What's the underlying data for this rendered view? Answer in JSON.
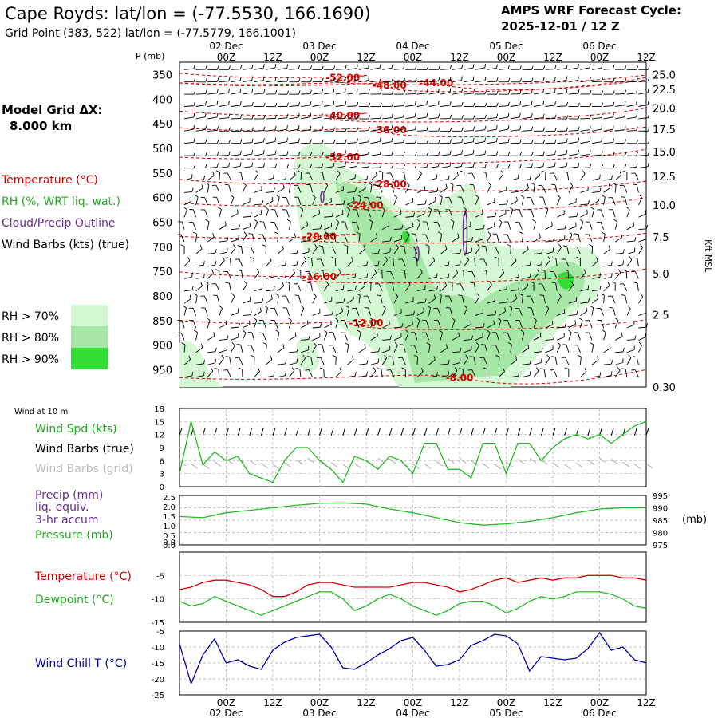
{
  "header": {
    "title": "Cape Royds:  lat/lon = (-77.5530, 166.1690)",
    "subtitle": "Grid Point (383, 522) lat/lon = (-77.5779, 166.1001)",
    "forecast_label": "AMPS WRF Forecast Cycle:",
    "forecast_cycle": "2025-12-01 / 12  Z"
  },
  "side_labels": {
    "model_grid": "Model Grid ΔX:",
    "model_grid_value": "8.000 km",
    "temperature": "Temperature (°C)",
    "rh": "RH (%, WRT liq. wat.)",
    "cloud": "Cloud/Precip Outline",
    "wind_barbs": "Wind Barbs (kts) (true)",
    "rh70": "RH > 70%",
    "rh80": "RH > 80%",
    "rh90": "RH > 90%",
    "wind10": "Wind at 10 m",
    "wind_spd": "Wind Spd (kts)",
    "wind_barbs_true": "Wind Barbs (true)",
    "wind_barbs_grid": "Wind Barbs (grid)",
    "precip1": "Precip (mm)",
    "precip2": "liq. equiv.",
    "precip3": "3-hr accum",
    "pressure": "Pressure (mb)",
    "temp": "Temperature (°C)",
    "dewpoint": "Dewpoint (°C)",
    "windchill": "Wind Chill T (°C)",
    "p_axis": "P (mb)",
    "kft_axis": "Kft MSL",
    "mb_unit": "(mb)"
  },
  "colors": {
    "temperature": "#dd0000",
    "rh": "#22bb22",
    "cloud": "#6a2c91",
    "windchill": "#0000aa",
    "grid": "#999999",
    "rh70": "#d4f7d4",
    "rh80": "#a6e6a6",
    "rh90": "#33dd33"
  },
  "chart_data": {
    "type": "line",
    "time_axis": {
      "hours": [
        0,
        12,
        24,
        36,
        48,
        60,
        72,
        84,
        96,
        108,
        120
      ],
      "tick_labels": [
        "00Z",
        "12Z",
        "00Z",
        "12Z",
        "00Z",
        "12Z",
        "00Z",
        "12Z",
        "00Z",
        "12Z"
      ],
      "tick_hours": [
        12,
        24,
        36,
        48,
        60,
        72,
        84,
        96,
        108,
        120
      ],
      "day_labels": [
        "02 Dec",
        "03 Dec",
        "04 Dec",
        "05 Dec",
        "06 Dec"
      ],
      "day_hours": [
        12,
        36,
        60,
        84,
        108
      ]
    },
    "cross_section": {
      "pressure_ticks": [
        350,
        400,
        450,
        500,
        550,
        600,
        650,
        700,
        750,
        800,
        850,
        900,
        950
      ],
      "height_kft_ticks": [
        "25.0",
        "22.5",
        "20.0",
        "17.5",
        "15.0",
        "12.5",
        "10.0",
        "7.5",
        "5.0",
        "2.5",
        "0.30"
      ],
      "height_kft_pressure": [
        350,
        380,
        418,
        461,
        507,
        557,
        615,
        680,
        755,
        838,
        985
      ],
      "temperature_contours": [
        {
          "label": "-52.00",
          "hour": 42,
          "p": 357
        },
        {
          "label": "-48.00",
          "hour": 54,
          "p": 372
        },
        {
          "label": "-44.00",
          "hour": 66,
          "p": 367
        },
        {
          "label": "-40.00",
          "hour": 42,
          "p": 434
        },
        {
          "label": "-36.00",
          "hour": 54,
          "p": 463
        },
        {
          "label": "-32.00",
          "hour": 42,
          "p": 518
        },
        {
          "label": "-28.00",
          "hour": 54,
          "p": 573
        },
        {
          "label": "-24.00",
          "hour": 48,
          "p": 616
        },
        {
          "label": "-20.00",
          "hour": 36,
          "p": 679
        },
        {
          "label": "-16.00",
          "hour": 36,
          "p": 761
        },
        {
          "label": "-12.00",
          "hour": 48,
          "p": 855
        },
        {
          "label": "-8.00",
          "hour": 72,
          "p": 966
        }
      ]
    },
    "rh_legend_levels": [
      70,
      80,
      90
    ],
    "wind_speed": {
      "ylim": [
        0,
        18
      ],
      "yticks": [
        0,
        3,
        6,
        9,
        12,
        15,
        18
      ],
      "hours": [
        0,
        3,
        6,
        9,
        12,
        15,
        18,
        21,
        24,
        27,
        30,
        33,
        36,
        39,
        42,
        45,
        48,
        51,
        54,
        57,
        60,
        63,
        66,
        69,
        72,
        75,
        78,
        81,
        84,
        87,
        90,
        93,
        96,
        99,
        102,
        105,
        108,
        111,
        114,
        117,
        120
      ],
      "values": [
        3,
        15,
        5,
        8,
        6,
        7,
        3,
        2,
        1,
        6,
        9,
        9,
        6,
        4,
        1,
        7,
        6,
        4,
        7,
        6,
        3,
        10,
        10,
        4,
        4,
        2,
        10,
        10,
        3,
        10,
        10,
        6,
        9,
        11,
        12,
        11,
        12,
        10,
        12,
        14,
        15
      ]
    },
    "precip_pressure": {
      "precip_ylim": [
        0,
        2.5
      ],
      "precip_yticks": [
        "0.0",
        "0.0",
        "0.5",
        "1.0",
        "1.5",
        "2.0",
        "2.5"
      ],
      "pressure_ylim": [
        975,
        995
      ],
      "pressure_yticks": [
        975,
        980,
        985,
        990,
        995
      ],
      "hours": [
        0,
        6,
        12,
        18,
        24,
        30,
        36,
        42,
        48,
        54,
        60,
        66,
        72,
        78,
        84,
        90,
        96,
        102,
        108,
        114,
        120
      ],
      "pressure": [
        986.5,
        986,
        988,
        989,
        990,
        991,
        991.8,
        992,
        991.5,
        989.5,
        988,
        986,
        984,
        983,
        983.5,
        984.5,
        986,
        988,
        989.5,
        990,
        990
      ],
      "precip": [
        0,
        0,
        0,
        0,
        0,
        0,
        0,
        0,
        0,
        0,
        0,
        0,
        0,
        0,
        0,
        0,
        0,
        0,
        0,
        0,
        0
      ]
    },
    "temperature_dewpoint": {
      "ylim": [
        -15,
        0
      ],
      "yticks": [
        -5,
        -10,
        -15
      ],
      "hours": [
        0,
        3,
        6,
        9,
        12,
        15,
        18,
        21,
        24,
        27,
        30,
        33,
        36,
        39,
        42,
        45,
        48,
        51,
        54,
        57,
        60,
        63,
        66,
        69,
        72,
        75,
        78,
        81,
        84,
        87,
        90,
        93,
        96,
        99,
        102,
        105,
        108,
        111,
        114,
        117,
        120
      ],
      "temperature": [
        -8,
        -7.5,
        -6.5,
        -6,
        -6,
        -6.5,
        -7,
        -8,
        -9.5,
        -9.5,
        -8.5,
        -7,
        -6.5,
        -6.5,
        -7,
        -7.5,
        -7.5,
        -7.5,
        -7.5,
        -7,
        -6.5,
        -6.5,
        -7,
        -7.5,
        -8.5,
        -8,
        -7,
        -6,
        -5.5,
        -6.5,
        -6,
        -5.5,
        -6,
        -5.5,
        -5.5,
        -5,
        -5,
        -5,
        -5.5,
        -5.5,
        -6
      ],
      "dewpoint": [
        -10.5,
        -11.5,
        -11,
        -9.5,
        -10.5,
        -11.5,
        -12.5,
        -13.5,
        -12.5,
        -11.5,
        -10.5,
        -9.5,
        -8.5,
        -8.5,
        -10,
        -12.5,
        -11.5,
        -10,
        -9,
        -10,
        -11.5,
        -12.5,
        -13.5,
        -12.5,
        -11,
        -10.5,
        -10.5,
        -11.5,
        -13,
        -12,
        -10.5,
        -9.5,
        -10,
        -9.5,
        -8.5,
        -8.5,
        -8.5,
        -9,
        -10,
        -11.5,
        -12
      ]
    },
    "wind_chill": {
      "ylim": [
        -25,
        -5
      ],
      "yticks": [
        -5,
        -10,
        -15,
        -20,
        -25
      ],
      "hours": [
        0,
        3,
        6,
        9,
        12,
        15,
        18,
        21,
        24,
        27,
        30,
        33,
        36,
        39,
        42,
        45,
        48,
        51,
        54,
        57,
        60,
        63,
        66,
        69,
        72,
        75,
        78,
        81,
        84,
        87,
        90,
        93,
        96,
        99,
        102,
        105,
        108,
        111,
        114,
        117,
        120
      ],
      "values": [
        -9,
        -21.5,
        -12.5,
        -7.5,
        -15,
        -14,
        -16,
        -17,
        -11,
        -8.5,
        -7,
        -6.5,
        -6,
        -10,
        -16.5,
        -17,
        -15,
        -12.5,
        -10.5,
        -8,
        -7,
        -11,
        -16,
        -15.5,
        -14,
        -9.5,
        -8,
        -6,
        -6.5,
        -9,
        -17.5,
        -13,
        -13.5,
        -14,
        -13.5,
        -10.5,
        -5.5,
        -11,
        -10,
        -14,
        -15
      ]
    }
  }
}
